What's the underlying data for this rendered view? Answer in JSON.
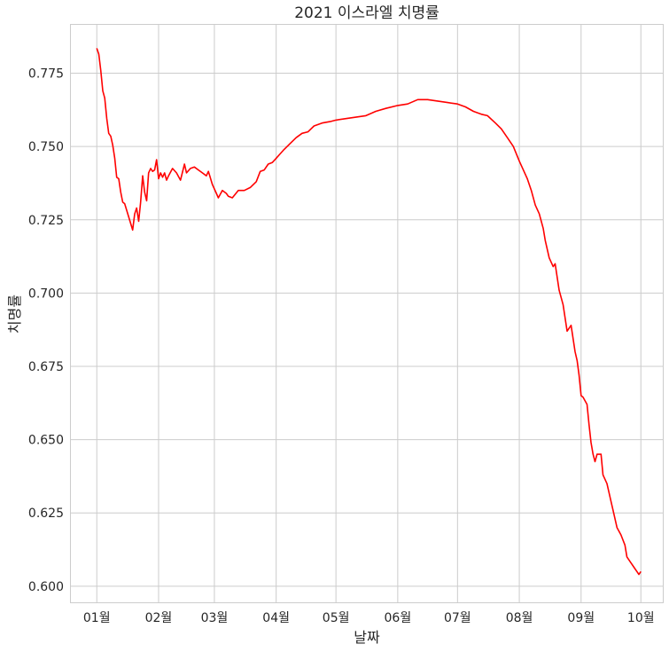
{
  "chart_data": {
    "type": "line",
    "title": "2021 이스라엘 치명률",
    "xlabel": "날짜",
    "ylabel": "치명률",
    "grid": true,
    "legend": "none",
    "line_color": "#ff0000",
    "x_range": [
      "2020-12-19",
      "2021-10-12"
    ],
    "ylim": [
      0.5945,
      0.7915
    ],
    "x_ticks": [
      {
        "date": "2021-01-01",
        "label": "01월"
      },
      {
        "date": "2021-02-01",
        "label": "02월"
      },
      {
        "date": "2021-03-01",
        "label": "03월"
      },
      {
        "date": "2021-04-01",
        "label": "04월"
      },
      {
        "date": "2021-05-01",
        "label": "05월"
      },
      {
        "date": "2021-06-01",
        "label": "06월"
      },
      {
        "date": "2021-07-01",
        "label": "07월"
      },
      {
        "date": "2021-08-01",
        "label": "08월"
      },
      {
        "date": "2021-09-01",
        "label": "09월"
      },
      {
        "date": "2021-10-01",
        "label": "10월"
      }
    ],
    "y_ticks": [
      {
        "value": 0.6,
        "label": "0.600"
      },
      {
        "value": 0.625,
        "label": "0.625"
      },
      {
        "value": 0.65,
        "label": "0.650"
      },
      {
        "value": 0.675,
        "label": "0.675"
      },
      {
        "value": 0.7,
        "label": "0.700"
      },
      {
        "value": 0.725,
        "label": "0.725"
      },
      {
        "value": 0.75,
        "label": "0.750"
      },
      {
        "value": 0.775,
        "label": "0.775"
      }
    ],
    "series": [
      {
        "x": [
          "2021-01-01",
          "2021-01-02",
          "2021-01-03",
          "2021-01-04",
          "2021-01-05",
          "2021-01-06",
          "2021-01-07",
          "2021-01-08",
          "2021-01-09",
          "2021-01-10",
          "2021-01-11",
          "2021-01-12",
          "2021-01-13",
          "2021-01-14",
          "2021-01-15",
          "2021-01-17",
          "2021-01-19",
          "2021-01-20",
          "2021-01-21",
          "2021-01-22",
          "2021-01-23",
          "2021-01-24",
          "2021-01-25",
          "2021-01-26",
          "2021-01-27",
          "2021-01-28",
          "2021-01-29",
          "2021-01-30",
          "2021-01-31",
          "2021-02-01",
          "2021-02-02",
          "2021-02-03",
          "2021-02-04",
          "2021-02-05",
          "2021-02-06",
          "2021-02-08",
          "2021-02-10",
          "2021-02-12",
          "2021-02-14",
          "2021-02-15",
          "2021-02-17",
          "2021-02-19",
          "2021-02-21",
          "2021-02-23",
          "2021-02-25",
          "2021-02-26",
          "2021-02-28",
          "2021-03-02",
          "2021-03-03",
          "2021-03-05",
          "2021-03-07",
          "2021-03-08",
          "2021-03-10",
          "2021-03-13",
          "2021-03-16",
          "2021-03-19",
          "2021-03-22",
          "2021-03-24",
          "2021-03-26",
          "2021-03-28",
          "2021-03-30",
          "2021-04-01",
          "2021-04-03",
          "2021-04-05",
          "2021-04-08",
          "2021-04-11",
          "2021-04-14",
          "2021-04-17",
          "2021-04-20",
          "2021-04-24",
          "2021-04-28",
          "2021-05-01",
          "2021-05-06",
          "2021-05-11",
          "2021-05-16",
          "2021-05-21",
          "2021-05-26",
          "2021-06-01",
          "2021-06-06",
          "2021-06-11",
          "2021-06-16",
          "2021-06-21",
          "2021-06-26",
          "2021-07-01",
          "2021-07-05",
          "2021-07-09",
          "2021-07-13",
          "2021-07-16",
          "2021-07-20",
          "2021-07-23",
          "2021-07-26",
          "2021-07-29",
          "2021-08-01",
          "2021-08-03",
          "2021-08-05",
          "2021-08-07",
          "2021-08-09",
          "2021-08-11",
          "2021-08-13",
          "2021-08-14",
          "2021-08-16",
          "2021-08-18",
          "2021-08-19",
          "2021-08-21",
          "2021-08-23",
          "2021-08-25",
          "2021-08-27",
          "2021-08-29",
          "2021-08-30",
          "2021-08-31",
          "2021-09-01",
          "2021-09-02",
          "2021-09-04",
          "2021-09-05",
          "2021-09-06",
          "2021-09-07",
          "2021-09-08",
          "2021-09-09",
          "2021-09-10",
          "2021-09-11",
          "2021-09-12",
          "2021-09-14",
          "2021-09-16",
          "2021-09-17",
          "2021-09-19",
          "2021-09-21",
          "2021-09-23",
          "2021-09-24",
          "2021-09-26",
          "2021-09-28",
          "2021-09-29",
          "2021-09-30",
          "2021-10-01"
        ],
        "values": [
          0.7835,
          0.7815,
          0.776,
          0.769,
          0.7665,
          0.7595,
          0.7545,
          0.7535,
          0.7505,
          0.746,
          0.7395,
          0.739,
          0.7345,
          0.731,
          0.7305,
          0.726,
          0.7215,
          0.727,
          0.729,
          0.7245,
          0.731,
          0.74,
          0.7345,
          0.7315,
          0.741,
          0.7425,
          0.7415,
          0.742,
          0.7455,
          0.739,
          0.741,
          0.7395,
          0.741,
          0.7385,
          0.74,
          0.7425,
          0.741,
          0.7385,
          0.744,
          0.741,
          0.7425,
          0.743,
          0.742,
          0.741,
          0.74,
          0.7415,
          0.737,
          0.734,
          0.7325,
          0.735,
          0.734,
          0.733,
          0.7325,
          0.735,
          0.735,
          0.736,
          0.738,
          0.7415,
          0.742,
          0.744,
          0.7445,
          0.746,
          0.7475,
          0.749,
          0.751,
          0.753,
          0.7545,
          0.755,
          0.757,
          0.758,
          0.7585,
          0.759,
          0.7595,
          0.76,
          0.7605,
          0.762,
          0.763,
          0.764,
          0.7645,
          0.766,
          0.766,
          0.7655,
          0.765,
          0.7645,
          0.7635,
          0.762,
          0.761,
          0.7605,
          0.758,
          0.756,
          0.753,
          0.75,
          0.745,
          0.742,
          0.739,
          0.735,
          0.73,
          0.727,
          0.722,
          0.718,
          0.712,
          0.709,
          0.71,
          0.701,
          0.696,
          0.687,
          0.689,
          0.68,
          0.677,
          0.672,
          0.665,
          0.6645,
          0.662,
          0.655,
          0.649,
          0.645,
          0.6425,
          0.645,
          0.645,
          0.645,
          0.638,
          0.635,
          0.629,
          0.626,
          0.62,
          0.6175,
          0.614,
          0.61,
          0.608,
          0.606,
          0.605,
          0.604,
          0.605
        ]
      }
    ]
  }
}
